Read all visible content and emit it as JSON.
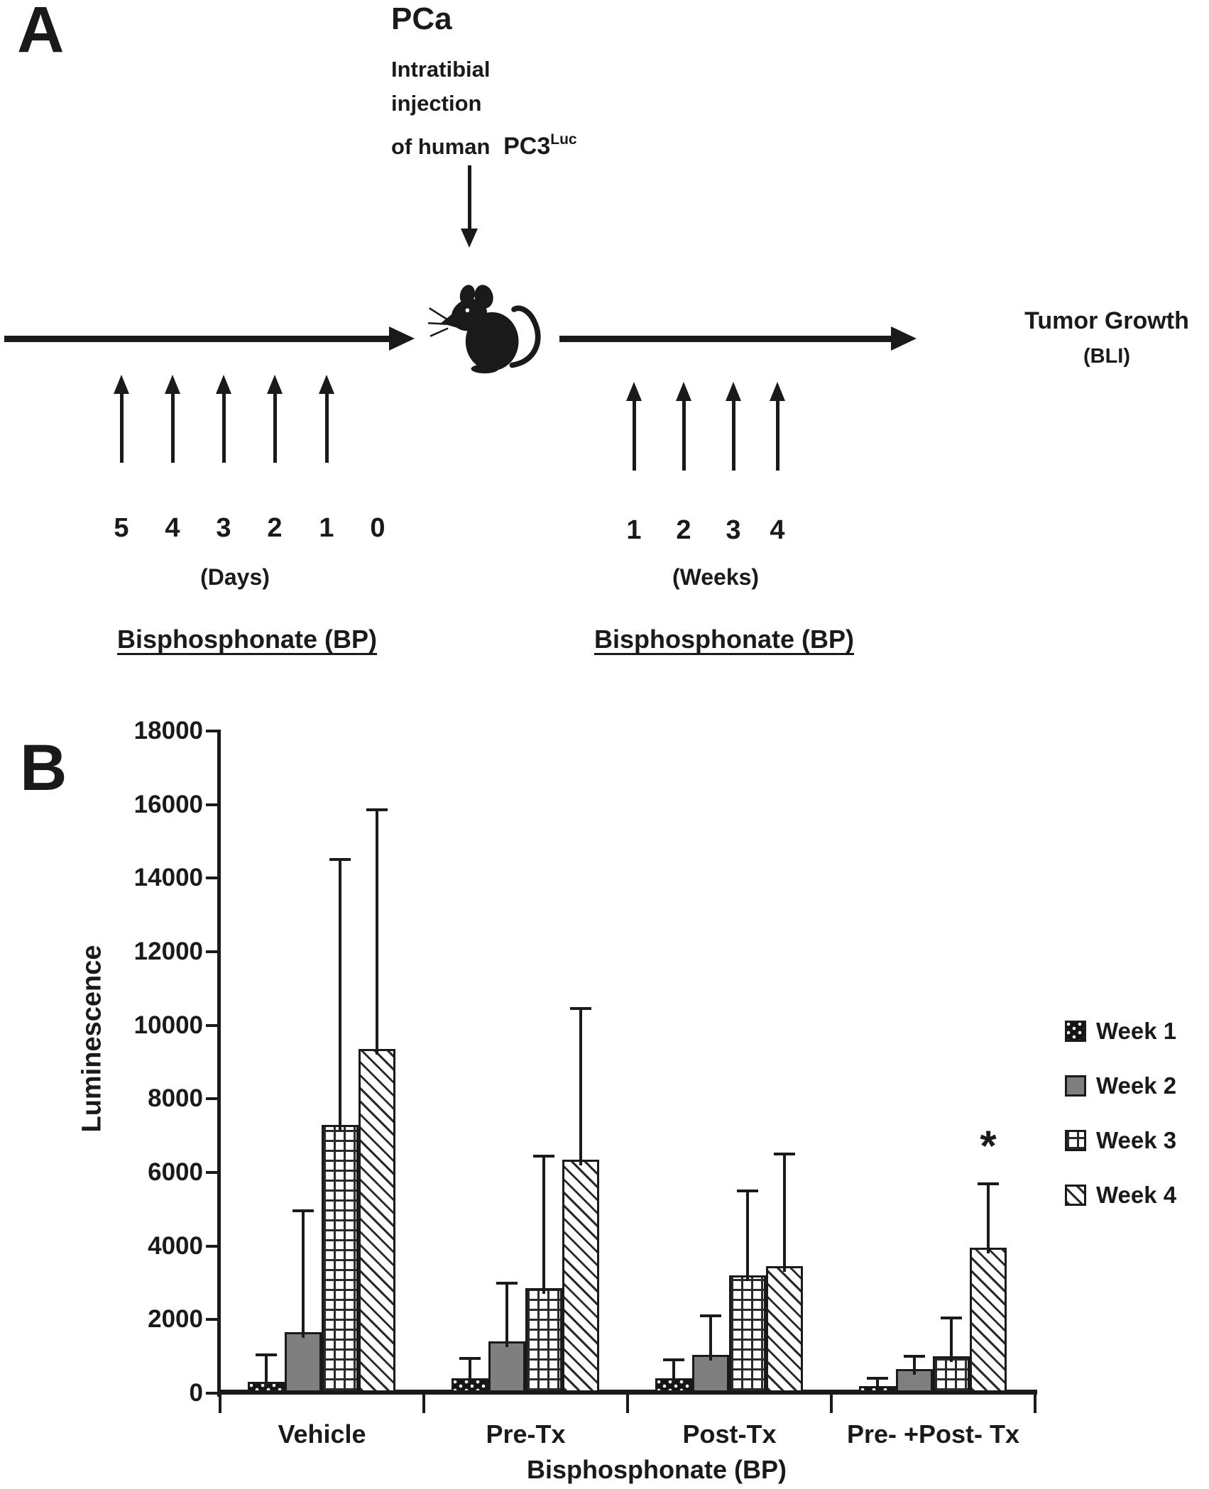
{
  "figure": {
    "background": "#ffffff",
    "ink_color": "#1a1a1a",
    "week2_gray": "#7f7f7f"
  },
  "panel_a": {
    "label": "A",
    "injection": {
      "title": "PCa",
      "desc_line1": "Intratibial",
      "desc_line2": "injection",
      "desc_line3": "of human",
      "cell_line": "PC3",
      "cell_line_superscript": "Luc"
    },
    "mouse_icon": "mouse-silhouette",
    "outcome": {
      "line1": "Tumor Growth",
      "line2": "(BLI)"
    },
    "timeline": {
      "pre": {
        "tick_labels": [
          "5",
          "4",
          "3",
          "2",
          "1",
          "0"
        ],
        "n_arrows": 5,
        "unit": "(Days)",
        "treatment": "Bisphosphonate (BP)"
      },
      "post": {
        "tick_labels": [
          "1",
          "2",
          "3",
          "4"
        ],
        "n_arrows": 4,
        "unit": "(Weeks)",
        "treatment": "Bisphosphonate (BP)"
      }
    }
  },
  "panel_b": {
    "label": "B",
    "significance_marker": "*"
  },
  "chart_data": {
    "type": "bar",
    "title": "",
    "xlabel": "Bisphosphonate (BP)",
    "ylabel": "Luminescence",
    "ylim": [
      0,
      18000
    ],
    "ytick_step": 2000,
    "yticks": [
      0,
      2000,
      4000,
      6000,
      8000,
      10000,
      12000,
      14000,
      16000,
      18000
    ],
    "grid": false,
    "legend_position": "right",
    "categories": [
      "Vehicle",
      "Pre-Tx",
      "Post-Tx",
      "Pre- +Post- Tx"
    ],
    "series": [
      {
        "name": "Week 1",
        "pattern": "black-dotted",
        "values": [
          300,
          400,
          400,
          200
        ],
        "error_upper": [
          1050,
          950,
          900,
          400
        ]
      },
      {
        "name": "Week 2",
        "pattern": "gray-solid",
        "values": [
          1650,
          1400,
          1050,
          650
        ],
        "error_upper": [
          4950,
          3000,
          2100,
          1000
        ]
      },
      {
        "name": "Week 3",
        "pattern": "grid-hatch",
        "values": [
          7300,
          2850,
          3200,
          1000
        ],
        "error_upper": [
          14500,
          6450,
          5500,
          2050
        ]
      },
      {
        "name": "Week 4",
        "pattern": "diagonal-hatch",
        "values": [
          9350,
          6350,
          3450,
          3950
        ],
        "error_upper": [
          15850,
          10450,
          6500,
          5700
        ]
      }
    ],
    "annotations": [
      {
        "text": "*",
        "category": "Pre- +Post- Tx",
        "series": "Week 4",
        "meaning": "statistically significant"
      }
    ]
  }
}
